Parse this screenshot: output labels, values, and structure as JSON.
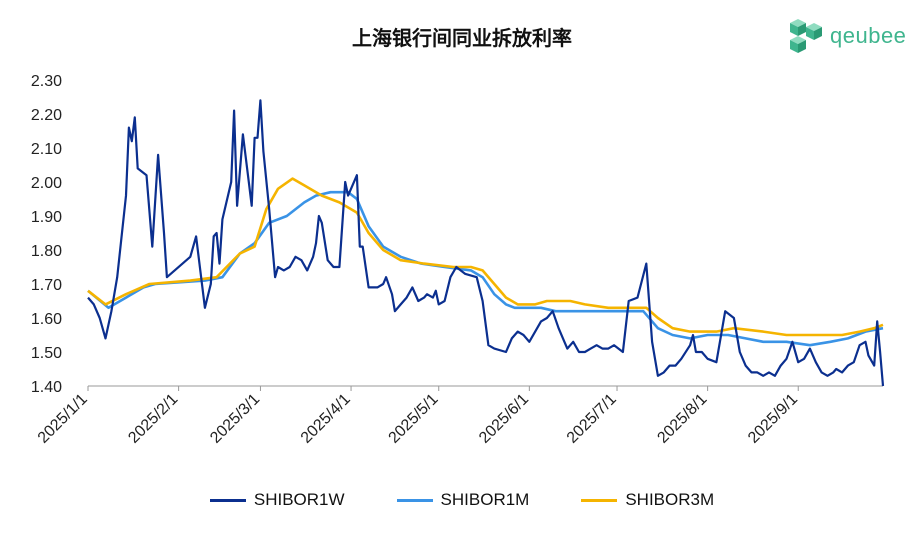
{
  "title": "上海银行间同业拆放利率",
  "logo": {
    "text": "qeubee",
    "icon": "cube-logo-icon",
    "color": "#3fb58e"
  },
  "chart_data": {
    "type": "line",
    "title": "上海银行间同业拆放利率",
    "xlabel": "",
    "ylabel": "",
    "x_range": [
      "2025-01-01",
      "2025-09-30"
    ],
    "ylim": [
      1.4,
      2.3
    ],
    "y_ticks": [
      "1.40",
      "1.50",
      "1.60",
      "1.70",
      "1.80",
      "1.90",
      "2.00",
      "2.10",
      "2.20",
      "2.30"
    ],
    "x_ticks": [
      "2025/1/1",
      "2025/2/1",
      "2025/3/1",
      "2025/4/1",
      "2025/5/1",
      "2025/6/1",
      "2025/7/1",
      "2025/8/1",
      "2025/9/1"
    ],
    "grid": false,
    "legend_position": "bottom",
    "series": [
      {
        "name": "SHIBOR1W",
        "color": "#0b2f8f",
        "points": [
          [
            "2025-01-01",
            1.66
          ],
          [
            "2025-01-03",
            1.64
          ],
          [
            "2025-01-05",
            1.6
          ],
          [
            "2025-01-07",
            1.54
          ],
          [
            "2025-01-09",
            1.62
          ],
          [
            "2025-01-11",
            1.72
          ],
          [
            "2025-01-14",
            1.96
          ],
          [
            "2025-01-15",
            2.16
          ],
          [
            "2025-01-16",
            2.12
          ],
          [
            "2025-01-17",
            2.19
          ],
          [
            "2025-01-18",
            2.04
          ],
          [
            "2025-01-21",
            2.02
          ],
          [
            "2025-01-23",
            1.81
          ],
          [
            "2025-01-25",
            2.08
          ],
          [
            "2025-01-27",
            1.85
          ],
          [
            "2025-01-28",
            1.72
          ],
          [
            "2025-02-05",
            1.78
          ],
          [
            "2025-02-07",
            1.84
          ],
          [
            "2025-02-10",
            1.63
          ],
          [
            "2025-02-12",
            1.7
          ],
          [
            "2025-02-13",
            1.84
          ],
          [
            "2025-02-14",
            1.85
          ],
          [
            "2025-02-15",
            1.76
          ],
          [
            "2025-02-16",
            1.89
          ],
          [
            "2025-02-19",
            2.0
          ],
          [
            "2025-02-20",
            2.21
          ],
          [
            "2025-02-21",
            1.93
          ],
          [
            "2025-02-23",
            2.14
          ],
          [
            "2025-02-25",
            2.0
          ],
          [
            "2025-02-26",
            1.93
          ],
          [
            "2025-02-27",
            2.13
          ],
          [
            "2025-02-28",
            2.13
          ],
          [
            "2025-03-01",
            2.24
          ],
          [
            "2025-03-02",
            2.09
          ],
          [
            "2025-03-04",
            1.92
          ],
          [
            "2025-03-06",
            1.72
          ],
          [
            "2025-03-07",
            1.75
          ],
          [
            "2025-03-09",
            1.74
          ],
          [
            "2025-03-11",
            1.75
          ],
          [
            "2025-03-13",
            1.78
          ],
          [
            "2025-03-15",
            1.77
          ],
          [
            "2025-03-17",
            1.74
          ],
          [
            "2025-03-19",
            1.78
          ],
          [
            "2025-03-20",
            1.82
          ],
          [
            "2025-03-21",
            1.9
          ],
          [
            "2025-03-22",
            1.88
          ],
          [
            "2025-03-24",
            1.77
          ],
          [
            "2025-03-26",
            1.75
          ],
          [
            "2025-03-28",
            1.75
          ],
          [
            "2025-03-30",
            2.0
          ],
          [
            "2025-03-31",
            1.96
          ],
          [
            "2025-04-03",
            2.02
          ],
          [
            "2025-04-04",
            1.81
          ],
          [
            "2025-04-05",
            1.81
          ],
          [
            "2025-04-07",
            1.69
          ],
          [
            "2025-04-10",
            1.69
          ],
          [
            "2025-04-12",
            1.7
          ],
          [
            "2025-04-13",
            1.72
          ],
          [
            "2025-04-15",
            1.67
          ],
          [
            "2025-04-16",
            1.62
          ],
          [
            "2025-04-18",
            1.64
          ],
          [
            "2025-04-20",
            1.66
          ],
          [
            "2025-04-22",
            1.69
          ],
          [
            "2025-04-24",
            1.65
          ],
          [
            "2025-04-26",
            1.66
          ],
          [
            "2025-04-27",
            1.67
          ],
          [
            "2025-04-29",
            1.66
          ],
          [
            "2025-04-30",
            1.68
          ],
          [
            "2025-05-01",
            1.64
          ],
          [
            "2025-05-03",
            1.65
          ],
          [
            "2025-05-05",
            1.72
          ],
          [
            "2025-05-07",
            1.75
          ],
          [
            "2025-05-10",
            1.73
          ],
          [
            "2025-05-14",
            1.72
          ],
          [
            "2025-05-16",
            1.65
          ],
          [
            "2025-05-18",
            1.52
          ],
          [
            "2025-05-20",
            1.51
          ],
          [
            "2025-05-24",
            1.5
          ],
          [
            "2025-05-26",
            1.54
          ],
          [
            "2025-05-28",
            1.56
          ],
          [
            "2025-05-30",
            1.55
          ],
          [
            "2025-06-01",
            1.53
          ],
          [
            "2025-06-03",
            1.56
          ],
          [
            "2025-06-05",
            1.59
          ],
          [
            "2025-06-07",
            1.6
          ],
          [
            "2025-06-09",
            1.62
          ],
          [
            "2025-06-11",
            1.57
          ],
          [
            "2025-06-13",
            1.53
          ],
          [
            "2025-06-14",
            1.51
          ],
          [
            "2025-06-16",
            1.53
          ],
          [
            "2025-06-18",
            1.5
          ],
          [
            "2025-06-20",
            1.5
          ],
          [
            "2025-06-22",
            1.51
          ],
          [
            "2025-06-24",
            1.52
          ],
          [
            "2025-06-26",
            1.51
          ],
          [
            "2025-06-28",
            1.51
          ],
          [
            "2025-06-30",
            1.52
          ],
          [
            "2025-07-03",
            1.5
          ],
          [
            "2025-07-05",
            1.65
          ],
          [
            "2025-07-08",
            1.66
          ],
          [
            "2025-07-11",
            1.76
          ],
          [
            "2025-07-13",
            1.53
          ],
          [
            "2025-07-15",
            1.43
          ],
          [
            "2025-07-17",
            1.44
          ],
          [
            "2025-07-19",
            1.46
          ],
          [
            "2025-07-21",
            1.46
          ],
          [
            "2025-07-23",
            1.48
          ],
          [
            "2025-07-26",
            1.52
          ],
          [
            "2025-07-27",
            1.55
          ],
          [
            "2025-07-28",
            1.5
          ],
          [
            "2025-07-30",
            1.5
          ],
          [
            "2025-08-01",
            1.48
          ],
          [
            "2025-08-04",
            1.47
          ],
          [
            "2025-08-07",
            1.62
          ],
          [
            "2025-08-10",
            1.6
          ],
          [
            "2025-08-12",
            1.5
          ],
          [
            "2025-08-14",
            1.46
          ],
          [
            "2025-08-16",
            1.44
          ],
          [
            "2025-08-18",
            1.44
          ],
          [
            "2025-08-20",
            1.43
          ],
          [
            "2025-08-22",
            1.44
          ],
          [
            "2025-08-24",
            1.43
          ],
          [
            "2025-08-26",
            1.46
          ],
          [
            "2025-08-28",
            1.48
          ],
          [
            "2025-08-30",
            1.53
          ],
          [
            "2025-09-01",
            1.47
          ],
          [
            "2025-09-03",
            1.48
          ],
          [
            "2025-09-05",
            1.51
          ],
          [
            "2025-09-07",
            1.47
          ],
          [
            "2025-09-09",
            1.44
          ],
          [
            "2025-09-11",
            1.43
          ],
          [
            "2025-09-13",
            1.44
          ],
          [
            "2025-09-14",
            1.45
          ],
          [
            "2025-09-16",
            1.44
          ],
          [
            "2025-09-18",
            1.46
          ],
          [
            "2025-09-20",
            1.47
          ],
          [
            "2025-09-22",
            1.52
          ],
          [
            "2025-09-24",
            1.53
          ],
          [
            "2025-09-25",
            1.49
          ],
          [
            "2025-09-27",
            1.46
          ],
          [
            "2025-09-28",
            1.59
          ],
          [
            "2025-09-29",
            1.5
          ],
          [
            "2025-09-30",
            1.4
          ]
        ]
      },
      {
        "name": "SHIBOR1M",
        "color": "#3a93e6",
        "points": [
          [
            "2025-01-01",
            1.68
          ],
          [
            "2025-01-08",
            1.63
          ],
          [
            "2025-01-14",
            1.66
          ],
          [
            "2025-01-20",
            1.69
          ],
          [
            "2025-01-24",
            1.7
          ],
          [
            "2025-02-10",
            1.71
          ],
          [
            "2025-02-16",
            1.72
          ],
          [
            "2025-02-22",
            1.79
          ],
          [
            "2025-02-27",
            1.82
          ],
          [
            "2025-03-04",
            1.88
          ],
          [
            "2025-03-10",
            1.9
          ],
          [
            "2025-03-16",
            1.94
          ],
          [
            "2025-03-20",
            1.96
          ],
          [
            "2025-03-25",
            1.97
          ],
          [
            "2025-03-31",
            1.97
          ],
          [
            "2025-04-03",
            1.95
          ],
          [
            "2025-04-07",
            1.87
          ],
          [
            "2025-04-12",
            1.81
          ],
          [
            "2025-04-18",
            1.78
          ],
          [
            "2025-04-25",
            1.76
          ],
          [
            "2025-05-03",
            1.75
          ],
          [
            "2025-05-12",
            1.74
          ],
          [
            "2025-05-16",
            1.72
          ],
          [
            "2025-05-20",
            1.67
          ],
          [
            "2025-05-24",
            1.64
          ],
          [
            "2025-05-27",
            1.63
          ],
          [
            "2025-06-05",
            1.63
          ],
          [
            "2025-06-10",
            1.62
          ],
          [
            "2025-06-20",
            1.62
          ],
          [
            "2025-07-10",
            1.62
          ],
          [
            "2025-07-15",
            1.57
          ],
          [
            "2025-07-20",
            1.55
          ],
          [
            "2025-07-26",
            1.54
          ],
          [
            "2025-08-01",
            1.55
          ],
          [
            "2025-08-08",
            1.55
          ],
          [
            "2025-08-14",
            1.54
          ],
          [
            "2025-08-20",
            1.53
          ],
          [
            "2025-08-28",
            1.53
          ],
          [
            "2025-09-05",
            1.52
          ],
          [
            "2025-09-12",
            1.53
          ],
          [
            "2025-09-18",
            1.54
          ],
          [
            "2025-09-24",
            1.56
          ],
          [
            "2025-09-30",
            1.57
          ]
        ]
      },
      {
        "name": "SHIBOR3M",
        "color": "#f5b400",
        "points": [
          [
            "2025-01-01",
            1.68
          ],
          [
            "2025-01-07",
            1.64
          ],
          [
            "2025-01-14",
            1.67
          ],
          [
            "2025-01-22",
            1.7
          ],
          [
            "2025-02-05",
            1.71
          ],
          [
            "2025-02-14",
            1.72
          ],
          [
            "2025-02-22",
            1.79
          ],
          [
            "2025-02-27",
            1.81
          ],
          [
            "2025-03-03",
            1.92
          ],
          [
            "2025-03-07",
            1.98
          ],
          [
            "2025-03-12",
            2.01
          ],
          [
            "2025-03-16",
            1.99
          ],
          [
            "2025-03-22",
            1.96
          ],
          [
            "2025-03-28",
            1.94
          ],
          [
            "2025-04-03",
            1.91
          ],
          [
            "2025-04-07",
            1.85
          ],
          [
            "2025-04-12",
            1.8
          ],
          [
            "2025-04-18",
            1.77
          ],
          [
            "2025-04-26",
            1.76
          ],
          [
            "2025-05-06",
            1.75
          ],
          [
            "2025-05-12",
            1.75
          ],
          [
            "2025-05-16",
            1.74
          ],
          [
            "2025-05-20",
            1.7
          ],
          [
            "2025-05-24",
            1.66
          ],
          [
            "2025-05-28",
            1.64
          ],
          [
            "2025-06-03",
            1.64
          ],
          [
            "2025-06-07",
            1.65
          ],
          [
            "2025-06-15",
            1.65
          ],
          [
            "2025-06-20",
            1.64
          ],
          [
            "2025-06-28",
            1.63
          ],
          [
            "2025-07-11",
            1.63
          ],
          [
            "2025-07-15",
            1.6
          ],
          [
            "2025-07-20",
            1.57
          ],
          [
            "2025-07-26",
            1.56
          ],
          [
            "2025-08-04",
            1.56
          ],
          [
            "2025-08-10",
            1.57
          ],
          [
            "2025-08-20",
            1.56
          ],
          [
            "2025-08-28",
            1.55
          ],
          [
            "2025-09-10",
            1.55
          ],
          [
            "2025-09-16",
            1.55
          ],
          [
            "2025-09-22",
            1.56
          ],
          [
            "2025-09-27",
            1.57
          ],
          [
            "2025-09-30",
            1.58
          ]
        ]
      }
    ]
  }
}
